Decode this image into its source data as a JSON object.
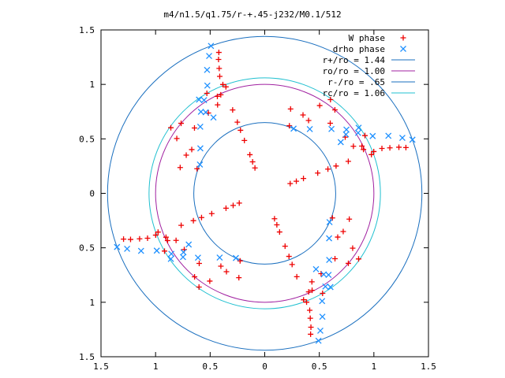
{
  "chart_data": {
    "type": "scatter",
    "title": "m4/n1.5/q1.75/r-+.45-j232/M0.1/512",
    "xlabel": "",
    "ylabel": "",
    "xlim": [
      -1.5,
      1.5
    ],
    "ylim": [
      -1.5,
      1.5
    ],
    "x_ticks": [
      -1.5,
      -1,
      -0.5,
      0,
      0.5,
      1,
      1.5
    ],
    "y_ticks": [
      -1.5,
      -1,
      -0.5,
      0,
      0.5,
      1,
      1.5
    ],
    "x_tick_labels": [
      "1.5",
      "1",
      "0.5",
      "0",
      "0.5",
      "1",
      "1.5"
    ],
    "y_tick_labels": [
      "1.5",
      "1",
      "0.5",
      "0",
      "0.5",
      "1",
      "1.5"
    ],
    "grid": false,
    "legend_position": "top-right",
    "symmetry_order": 4,
    "series": [
      {
        "name": "W phase",
        "marker": "+",
        "color": "#ee0000",
        "points_polar": [
          [
            0.25,
            111
          ],
          [
            0.31,
            111
          ],
          [
            0.38,
            111
          ],
          [
            0.52,
            111
          ],
          [
            0.62,
            111
          ],
          [
            0.7,
            111
          ],
          [
            0.82,
            111
          ],
          [
            1.07,
            111
          ],
          [
            1.15,
            111
          ],
          [
            1.22,
            110
          ],
          [
            1.3,
            109
          ],
          [
            1.36,
            108
          ],
          [
            0.81,
            163
          ],
          [
            0.78,
            149
          ],
          [
            0.88,
            137
          ],
          [
            0.9,
            125
          ],
          [
            0.92,
            118
          ],
          [
            0.99,
            114
          ],
          [
            0.99,
            116
          ],
          [
            1.04,
            110
          ],
          [
            0.66,
            70
          ],
          [
            0.8,
            64
          ],
          [
            0.95,
            58
          ],
          [
            1.05,
            55
          ],
          [
            1.0,
            50
          ],
          [
            1.06,
            30
          ]
        ]
      },
      {
        "name": "drho phase",
        "marker": "x",
        "color": "#1e90ff",
        "points_polar": [
          [
            0.65,
            66
          ],
          [
            0.72,
            55
          ],
          [
            0.85,
            44
          ],
          [
            0.95,
            38
          ],
          [
            1.02,
            33
          ],
          [
            1.12,
            28
          ],
          [
            1.25,
            25
          ],
          [
            1.36,
            22
          ],
          [
            1.44,
            20
          ],
          [
            0.84,
            34
          ],
          [
            0.92,
            36
          ],
          [
            1.05,
            35
          ]
        ]
      }
    ],
    "reference_circles": [
      {
        "label": "r+/ro = 1.44",
        "radius": 1.44,
        "color": "#1a6fbf"
      },
      {
        "label": "ro/ro = 1.00",
        "radius": 1.0,
        "color": "#a020a0"
      },
      {
        "label": "r-/ro = .65",
        "radius": 0.65,
        "color": "#1a6fbf"
      },
      {
        "label": "rc/ro = 1.06",
        "radius": 1.06,
        "color": "#20c0d0"
      }
    ]
  }
}
